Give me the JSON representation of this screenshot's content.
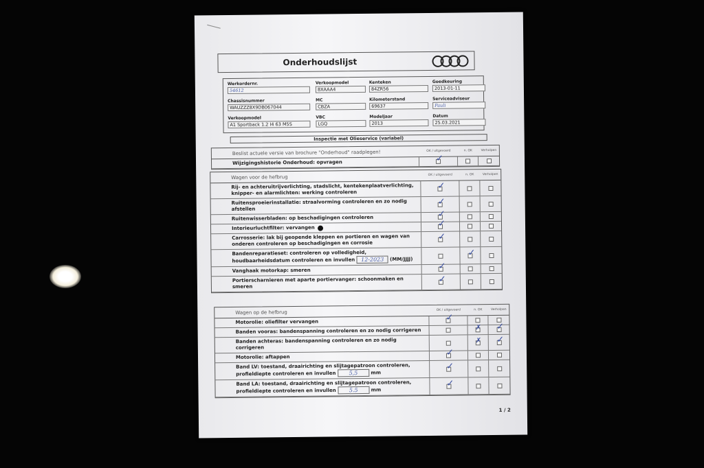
{
  "title": "Onderhoudslijst",
  "info": [
    {
      "label": "Werkordernr.",
      "value": "54612",
      "handwritten": true
    },
    {
      "label": "Verkoopmodel",
      "value": "8XAAA4"
    },
    {
      "label": "Kenteken",
      "value": "84ZR56"
    },
    {
      "label": "Goedkeuring",
      "value": "2013-01-11"
    },
    {
      "label": "Chassisnummer",
      "value": "WAUZZZ8X9DB067044"
    },
    {
      "label": "MC",
      "value": "CBZA"
    },
    {
      "label": "Kilometerstand",
      "value": "69637"
    },
    {
      "label": "Serviceadviseur",
      "value": "Pauli",
      "handwritten": true
    },
    {
      "label": "Verkoopmodel",
      "value": "A1 Sportback 1.2 I4 63 M5S"
    },
    {
      "label": "VBC",
      "value": "LGQ"
    },
    {
      "label": "Modeljaar",
      "value": "2013"
    },
    {
      "label": "Datum",
      "value": "25.03.2021"
    }
  ],
  "service_bar": "Inspectie met Olieservice (variabel)",
  "columns": {
    "ok": "OK / uitgevoerd",
    "nok": "n. OK",
    "fixed": "Verholpen"
  },
  "sections": [
    {
      "title": "Beslist actuele versie van brochure \"Onderhoud\" raadplegen!",
      "rows": [
        {
          "label": "Wijzigingshistorie Onderhoud: opvragen",
          "ok": "checked",
          "nok": "empty",
          "fixed": "empty"
        }
      ]
    },
    {
      "title": "Wagen voor de hefbrug",
      "rows": [
        {
          "label": "Rij- en achteruitrijverlichting, stadslicht, kentekenplaatverlichting, knipper- en alarmlichten: werking controleren",
          "ok": "checked",
          "nok": "empty",
          "fixed": "empty"
        },
        {
          "label": "Ruitensproeierinstallatie: straalvorming controleren en zo nodig afstellen",
          "ok": "checked",
          "nok": "empty",
          "fixed": "empty"
        },
        {
          "label": "Ruitenwisserbladen: op beschadigingen controleren",
          "ok": "checked",
          "nok": "empty",
          "fixed": "empty"
        },
        {
          "label": "Interieurluchtfilter: vervangen",
          "ok": "checked",
          "nok": "empty",
          "fixed": "empty"
        },
        {
          "label": "Carrosserie: lak bij geopende kleppen en portieren en wagen van onderen controleren op beschadigingen en corrosie",
          "ok": "checked",
          "nok": "empty",
          "fixed": "empty"
        },
        {
          "label": "Bandenreparatieset: controleren op volledigheid, houdbaarheidsdatum controleren en invullen",
          "fill": "12-2023",
          "unit": "(MM/JJJJ)",
          "ok": "empty",
          "nok": "checked",
          "fixed": "empty"
        },
        {
          "label": "Vanghaak motorkap: smeren",
          "ok": "checked",
          "nok": "empty",
          "fixed": "empty"
        },
        {
          "label": "Portierscharnieren met aparte portiervanger: schoonmaken en smeren",
          "ok": "checked",
          "nok": "empty",
          "fixed": "empty"
        }
      ]
    },
    {
      "title": "Wagen op de hefbrug",
      "rows": [
        {
          "label": "Motorolie: oliefilter vervangen",
          "ok": "checked",
          "nok": "empty",
          "fixed": "empty"
        },
        {
          "label": "Banden vooras: bandenspanning controleren en zo nodig corrigeren",
          "ok": "empty",
          "nok": "crossed",
          "fixed": "checked"
        },
        {
          "label": "Banden achteras: bandenspanning controleren en zo nodig corrigeren",
          "ok": "empty",
          "nok": "crossed",
          "fixed": "checked"
        },
        {
          "label": "Motorolie: aftappen",
          "ok": "checked",
          "nok": "empty",
          "fixed": "empty"
        },
        {
          "label": "Band LV: toestand, draairichting en slijtagepatroon controleren, profieldiepte controleren en invullen",
          "fill": "5,5",
          "unit": "mm",
          "ok": "checked",
          "nok": "empty",
          "fixed": "empty"
        },
        {
          "label": "Band LA: toestand, draairichting en slijtagepatroon controleren, profieldiepte controleren en invullen",
          "fill": "5.5",
          "unit": "mm",
          "ok": "checked",
          "nok": "empty",
          "fixed": "empty"
        }
      ]
    }
  ],
  "page_number": "1 / 2",
  "colors": {
    "ink": "#3a4fa0",
    "paper": "#f2f2f4",
    "background": "#050505"
  }
}
